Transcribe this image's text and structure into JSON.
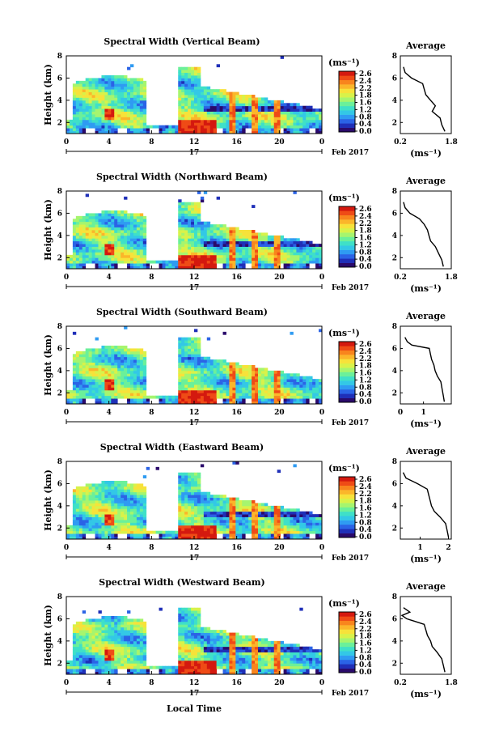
{
  "figure": {
    "bottom_label": "Local Time"
  },
  "colorbar": {
    "unit_label": "(ms⁻¹)",
    "ticks": [
      "2.6",
      "2.4",
      "2.2",
      "1.8",
      "1.6",
      "1.2",
      "0.8",
      "0.4",
      "0.0"
    ],
    "colors": [
      "#2a0a6b",
      "#1f2fb8",
      "#2b63e6",
      "#2f9bf2",
      "#33c8e6",
      "#3fe0c8",
      "#6bf09a",
      "#a6f56e",
      "#d8f24a",
      "#f7e23a",
      "#fbb62a",
      "#f8851d",
      "#ef4b16",
      "#d4190f"
    ]
  },
  "chart_data": [
    {
      "type": "heatmap",
      "title": "Spectral Width (Vertical Beam)",
      "ylabel": "Height (km)",
      "x_ticks": [
        "0",
        "4",
        "8",
        "12",
        "16",
        "20",
        "0"
      ],
      "y_ticks": [
        "2",
        "4",
        "6",
        "8"
      ],
      "xlim": [
        0,
        24
      ],
      "ylim": [
        1,
        8
      ],
      "day_label": "17",
      "date_label": "Feb 2017",
      "average": {
        "title": "Average",
        "xlabel": "(ms⁻¹)",
        "x_ticks": [
          "0.2",
          "1.8"
        ],
        "xlim": [
          0.2,
          1.8
        ],
        "y_ticks": [
          "2",
          "4",
          "6",
          "8"
        ],
        "ylim": [
          1,
          8
        ],
        "height_km": [
          1.2,
          1.8,
          2.4,
          3.0,
          3.5,
          4.0,
          4.5,
          5.0,
          5.5,
          6.0,
          6.5,
          7.0
        ],
        "width_ms": [
          1.6,
          1.5,
          1.45,
          1.2,
          1.3,
          1.15,
          1.0,
          0.95,
          0.9,
          0.55,
          0.35,
          0.3
        ]
      }
    },
    {
      "type": "heatmap",
      "title": "Spectral Width (Northward Beam)",
      "ylabel": "Height (km)",
      "x_ticks": [
        "0",
        "4",
        "8",
        "12",
        "16",
        "20",
        "0"
      ],
      "y_ticks": [
        "2",
        "4",
        "6",
        "8"
      ],
      "xlim": [
        0,
        24
      ],
      "ylim": [
        1,
        8
      ],
      "day_label": "17",
      "date_label": "Feb 2017",
      "average": {
        "title": "Average",
        "xlabel": "(ms⁻¹)",
        "x_ticks": [
          "0.2",
          "1.8"
        ],
        "xlim": [
          0.2,
          1.8
        ],
        "y_ticks": [
          "2",
          "4",
          "6",
          "8"
        ],
        "ylim": [
          1,
          8
        ],
        "height_km": [
          1.2,
          1.8,
          2.4,
          3.0,
          3.5,
          4.0,
          4.5,
          5.0,
          5.5,
          6.0,
          6.5,
          7.0
        ],
        "width_ms": [
          1.55,
          1.5,
          1.4,
          1.3,
          1.15,
          1.1,
          1.05,
          0.95,
          0.8,
          0.5,
          0.35,
          0.3
        ]
      }
    },
    {
      "type": "heatmap",
      "title": "Spectral Width (Southward Beam)",
      "ylabel": "Height (km)",
      "x_ticks": [
        "0",
        "4",
        "8",
        "12",
        "16",
        "20",
        "0"
      ],
      "y_ticks": [
        "2",
        "4",
        "6",
        "8"
      ],
      "xlim": [
        0,
        24
      ],
      "ylim": [
        1,
        8
      ],
      "day_label": "17",
      "date_label": "Feb 2017",
      "average": {
        "title": "Average",
        "xlabel": "(ms⁻¹)",
        "x_ticks": [
          "0",
          "1"
        ],
        "xlim": [
          0,
          2.2
        ],
        "y_ticks": [
          "2",
          "4",
          "6",
          "8"
        ],
        "ylim": [
          1,
          8
        ],
        "height_km": [
          1.2,
          1.8,
          2.4,
          3.0,
          3.5,
          4.0,
          4.5,
          5.0,
          5.5,
          6.0,
          6.3,
          6.6,
          7.0
        ],
        "width_ms": [
          1.9,
          1.85,
          1.8,
          1.75,
          1.6,
          1.5,
          1.45,
          1.35,
          1.3,
          1.25,
          0.5,
          0.3,
          0.2
        ]
      }
    },
    {
      "type": "heatmap",
      "title": "Spectral Width (Eastward Beam)",
      "ylabel": "Height (km)",
      "x_ticks": [
        "0",
        "4",
        "8",
        "12",
        "16",
        "20",
        "0"
      ],
      "y_ticks": [
        "2",
        "4",
        "6",
        "8"
      ],
      "xlim": [
        0,
        24
      ],
      "ylim": [
        1,
        8
      ],
      "day_label": "17",
      "date_label": "Feb 2017",
      "average": {
        "title": "Average",
        "xlabel": "(ms⁻¹)",
        "x_ticks": [
          "1",
          "2"
        ],
        "xlim": [
          0.3,
          2.1
        ],
        "y_ticks": [
          "2",
          "4",
          "6",
          "8"
        ],
        "ylim": [
          1,
          8
        ],
        "height_km": [
          1.2,
          1.8,
          2.4,
          3.0,
          3.5,
          4.0,
          4.5,
          5.0,
          5.5,
          6.0,
          6.5,
          7.0
        ],
        "width_ms": [
          2.0,
          1.95,
          1.9,
          1.7,
          1.5,
          1.4,
          1.35,
          1.3,
          1.25,
          0.9,
          0.5,
          0.4
        ]
      }
    },
    {
      "type": "heatmap",
      "title": "Spectral Width (Westward Beam)",
      "ylabel": "Height (km)",
      "x_ticks": [
        "0",
        "4",
        "8",
        "12",
        "16",
        "20",
        "0"
      ],
      "y_ticks": [
        "2",
        "4",
        "6",
        "8"
      ],
      "xlim": [
        0,
        24
      ],
      "ylim": [
        1,
        8
      ],
      "day_label": "17",
      "date_label": "Feb 2017",
      "average": {
        "title": "Average",
        "xlabel": "(ms⁻¹)",
        "x_ticks": [
          "0.2",
          "1.8"
        ],
        "xlim": [
          0.2,
          1.8
        ],
        "y_ticks": [
          "2",
          "4",
          "6",
          "8"
        ],
        "ylim": [
          1,
          8
        ],
        "height_km": [
          1.2,
          1.8,
          2.4,
          3.0,
          3.5,
          4.0,
          4.5,
          5.0,
          5.5,
          6.0,
          6.3,
          6.6,
          7.0
        ],
        "width_ms": [
          1.6,
          1.55,
          1.5,
          1.35,
          1.2,
          1.15,
          1.05,
          1.0,
          0.95,
          0.4,
          0.25,
          0.5,
          0.3
        ]
      }
    }
  ]
}
